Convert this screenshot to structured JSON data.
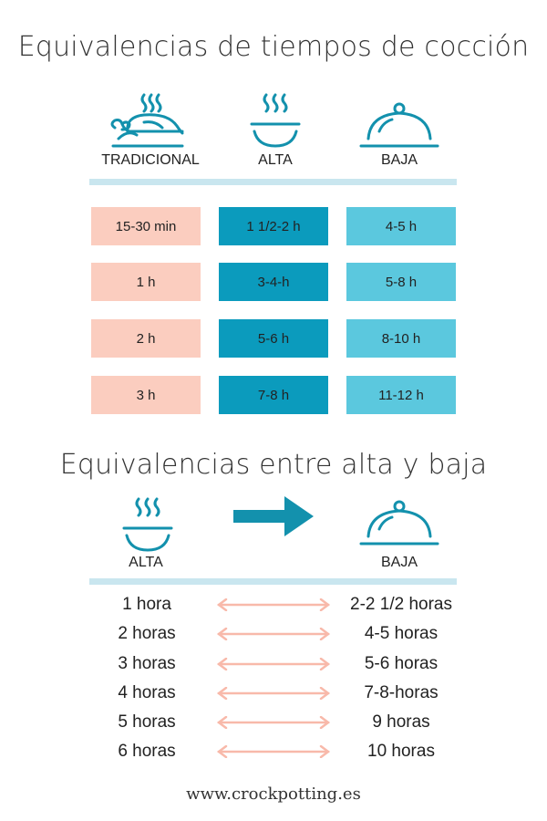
{
  "title_main": "Equivalencias de tiempos de cocción",
  "columns": {
    "tradicional": "TRADICIONAL",
    "alta": "ALTA",
    "baja": "BAJA"
  },
  "icons": {
    "tradicional": "roast-chicken-icon",
    "alta": "steaming-bowl-icon",
    "baja": "cloche-icon"
  },
  "rows": [
    {
      "tradicional": "15-30 min",
      "alta": "1 1/2-2  h",
      "baja": "4-5 h"
    },
    {
      "tradicional": "1 h",
      "alta": "3-4-h",
      "baja": "5-8 h"
    },
    {
      "tradicional": "2 h",
      "alta": "5-6 h",
      "baja": "8-10 h"
    },
    {
      "tradicional": "3 h",
      "alta": "7-8 h",
      "baja": "11-12 h"
    }
  ],
  "colors": {
    "tradicional": "#fbcdbf",
    "alta": "#0b9bbd",
    "baja": "#5bc8de",
    "accent": "#1391ad",
    "divider": "#c9e6ef",
    "arrow": "#f8b9aa"
  },
  "title_second": "Equivalencias entre alta y baja",
  "second_labels": {
    "alta": "ALTA",
    "baja": "BAJA"
  },
  "equivalences": [
    {
      "alta": "1 hora",
      "baja": "2-2 1/2 horas"
    },
    {
      "alta": "2 horas",
      "baja": "4-5 horas"
    },
    {
      "alta": "3 horas",
      "baja": "5-6 horas"
    },
    {
      "alta": "4 horas",
      "baja": "7-8-horas"
    },
    {
      "alta": "5 horas",
      "baja": "9 horas"
    },
    {
      "alta": "6 horas",
      "baja": "10 horas"
    }
  ],
  "footer": "www.crockpotting.es"
}
